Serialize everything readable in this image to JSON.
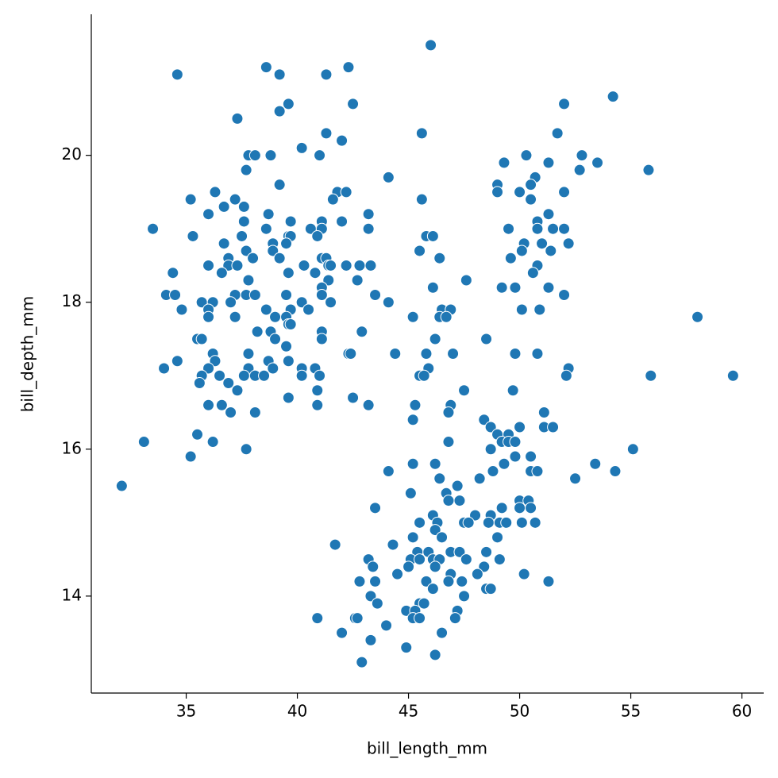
{
  "chart_data": {
    "type": "scatter",
    "x_label": "bill_length_mm",
    "y_label": "bill_depth_mm",
    "color": "#1f77b4",
    "xlim": [
      30.73,
      60.98
    ],
    "ylim": [
      12.68,
      21.92
    ],
    "xticks": [
      35,
      40,
      45,
      50,
      55,
      60
    ],
    "yticks": [
      14,
      16,
      18,
      20
    ],
    "x": [
      46.0,
      34.6,
      38.6,
      39.2,
      41.3,
      42.3,
      39.2,
      39.6,
      42.5,
      54.2,
      52.0,
      37.3,
      41.3,
      42.0,
      45.6,
      51.7,
      40.2,
      37.8,
      38.1,
      38.8,
      41.0,
      50.3,
      52.8,
      49.3,
      51.3,
      53.5,
      37.7,
      52.7,
      55.8,
      44.1,
      50.7,
      39.2,
      49.0,
      50.5,
      36.3,
      41.8,
      42.2,
      49.0,
      50.0,
      52.0,
      35.2,
      37.2,
      41.6,
      45.6,
      50.5,
      36.7,
      37.6,
      36.0,
      38.7,
      43.2,
      51.3,
      37.6,
      39.7,
      41.1,
      42.0,
      50.8,
      33.5,
      38.6,
      40.6,
      41.1,
      43.2,
      49.5,
      50.8,
      51.5,
      52.0,
      35.3,
      37.5,
      39.6,
      39.7,
      40.9,
      45.8,
      46.1,
      36.7,
      38.9,
      39.5,
      50.2,
      51.0,
      52.2,
      38.9,
      37.7,
      45.5,
      51.4,
      50.1,
      36.9,
      38.0,
      39.2,
      41.1,
      41.3,
      46.4,
      49.6,
      36.0,
      36.9,
      37.3,
      40.3,
      41.4,
      41.5,
      42.2,
      42.8,
      43.3,
      50.8,
      34.4,
      36.6,
      39.6,
      40.8,
      50.6,
      41.4,
      37.8,
      42.7,
      47.6,
      41.1,
      46.1,
      49.2,
      49.8,
      51.3,
      34.1,
      34.5,
      37.2,
      37.7,
      38.1,
      39.5,
      41.1,
      43.5,
      52.0,
      35.7,
      36.2,
      37.0,
      40.2,
      41.5,
      44.1,
      34.8,
      36.0,
      38.6,
      39.7,
      40.5,
      46.5,
      46.9,
      50.1,
      50.9,
      36.0,
      37.2,
      39.0,
      39.5,
      45.2,
      46.4,
      46.7,
      58.0,
      39.6,
      39.7,
      38.2,
      38.8,
      41.1,
      42.9,
      35.5,
      35.7,
      39.0,
      41.1,
      46.2,
      48.5,
      39.5,
      36.2,
      37.8,
      42.3,
      42.4,
      44.4,
      45.8,
      47.0,
      49.8,
      50.8,
      36.3,
      34.6,
      38.7,
      39.6,
      36.0,
      34.0,
      37.8,
      38.9,
      40.2,
      40.8,
      45.9,
      52.2,
      35.7,
      36.5,
      37.6,
      38.1,
      38.5,
      40.2,
      41.0,
      45.5,
      45.7,
      52.1,
      55.9,
      59.6,
      35.6,
      36.9,
      37.3,
      40.9,
      47.5,
      49.7,
      39.6,
      42.5,
      36.0,
      36.6,
      40.9,
      43.2,
      45.3,
      46.9,
      37.0,
      38.1,
      46.8,
      51.1,
      45.2,
      48.4,
      48.7,
      50.0,
      51.1,
      51.5,
      35.5,
      49.0,
      49.5,
      33.1,
      36.2,
      46.8,
      49.2,
      49.5,
      49.8,
      37.7,
      48.7,
      55.1,
      35.2,
      49.8,
      50.5,
      49.3,
      45.2,
      46.2,
      53.4,
      32.1,
      44.1,
      48.8,
      50.5,
      50.8,
      54.3,
      46.4,
      48.2,
      52.5,
      47.2,
      45.1,
      46.7,
      46.8,
      47.3,
      50.0,
      50.4,
      43.5,
      49.2,
      50.0,
      50.5,
      46.1,
      48.0,
      48.7,
      45.5,
      46.3,
      47.5,
      47.7,
      48.6,
      49.1,
      49.4,
      50.1,
      50.7,
      46.2,
      49.0,
      45.2,
      46.5,
      41.7,
      44.3,
      46.9,
      45.4,
      45.9,
      47.3,
      48.5,
      43.2,
      45.1,
      45.5,
      46.1,
      46.4,
      47.6,
      49.1,
      43.4,
      45.0,
      46.2,
      48.4,
      50.2,
      44.5,
      46.9,
      48.1,
      42.8,
      43.5,
      45.8,
      46.8,
      47.4,
      51.3,
      46.1,
      48.5,
      48.7,
      43.3,
      47.5,
      43.6,
      45.5,
      45.7,
      47.2,
      44.9,
      45.3,
      40.9,
      42.6,
      42.7,
      45.2,
      45.5,
      47.1,
      44.0,
      42.0,
      46.5,
      43.3,
      44.9,
      46.2,
      42.9
    ],
    "values": [
      21.5,
      21.1,
      21.2,
      21.1,
      21.1,
      21.2,
      20.6,
      20.7,
      20.7,
      20.8,
      20.7,
      20.5,
      20.3,
      20.2,
      20.3,
      20.3,
      20.1,
      20.0,
      20.0,
      20.0,
      20.0,
      20.0,
      20.0,
      19.9,
      19.9,
      19.9,
      19.8,
      19.8,
      19.8,
      19.7,
      19.7,
      19.6,
      19.6,
      19.6,
      19.5,
      19.5,
      19.5,
      19.5,
      19.5,
      19.5,
      19.4,
      19.4,
      19.4,
      19.4,
      19.4,
      19.3,
      19.3,
      19.2,
      19.2,
      19.2,
      19.2,
      19.1,
      19.1,
      19.1,
      19.1,
      19.1,
      19.0,
      19.0,
      19.0,
      19.0,
      19.0,
      19.0,
      19.0,
      19.0,
      19.0,
      18.9,
      18.9,
      18.9,
      18.9,
      18.9,
      18.9,
      18.9,
      18.8,
      18.8,
      18.8,
      18.8,
      18.8,
      18.8,
      18.7,
      18.7,
      18.7,
      18.7,
      18.7,
      18.6,
      18.6,
      18.6,
      18.6,
      18.6,
      18.6,
      18.6,
      18.5,
      18.5,
      18.5,
      18.5,
      18.5,
      18.5,
      18.5,
      18.5,
      18.5,
      18.5,
      18.4,
      18.4,
      18.4,
      18.4,
      18.4,
      18.3,
      18.3,
      18.3,
      18.3,
      18.2,
      18.2,
      18.2,
      18.2,
      18.2,
      18.1,
      18.1,
      18.1,
      18.1,
      18.1,
      18.1,
      18.1,
      18.1,
      18.1,
      18.0,
      18.0,
      18.0,
      18.0,
      18.0,
      18.0,
      17.9,
      17.9,
      17.9,
      17.9,
      17.9,
      17.9,
      17.9,
      17.9,
      17.9,
      17.8,
      17.8,
      17.8,
      17.8,
      17.8,
      17.8,
      17.8,
      17.8,
      17.7,
      17.7,
      17.6,
      17.6,
      17.6,
      17.6,
      17.5,
      17.5,
      17.5,
      17.5,
      17.5,
      17.5,
      17.4,
      17.3,
      17.3,
      17.3,
      17.3,
      17.3,
      17.3,
      17.3,
      17.3,
      17.3,
      17.2,
      17.2,
      17.2,
      17.2,
      17.1,
      17.1,
      17.1,
      17.1,
      17.1,
      17.1,
      17.1,
      17.1,
      17.0,
      17.0,
      17.0,
      17.0,
      17.0,
      17.0,
      17.0,
      17.0,
      17.0,
      17.0,
      17.0,
      17.0,
      16.9,
      16.9,
      16.8,
      16.8,
      16.8,
      16.8,
      16.7,
      16.7,
      16.6,
      16.6,
      16.6,
      16.6,
      16.6,
      16.6,
      16.5,
      16.5,
      16.5,
      16.5,
      16.4,
      16.4,
      16.3,
      16.3,
      16.3,
      16.3,
      16.2,
      16.2,
      16.2,
      16.1,
      16.1,
      16.1,
      16.1,
      16.1,
      16.1,
      16.0,
      16.0,
      16.0,
      15.9,
      15.9,
      15.9,
      15.8,
      15.8,
      15.8,
      15.8,
      15.5,
      15.7,
      15.7,
      15.7,
      15.7,
      15.7,
      15.6,
      15.6,
      15.6,
      15.5,
      15.4,
      15.4,
      15.3,
      15.3,
      15.3,
      15.3,
      15.2,
      15.2,
      15.2,
      15.2,
      15.1,
      15.1,
      15.1,
      15.0,
      15.0,
      15.0,
      15.0,
      15.0,
      15.0,
      15.0,
      15.0,
      15.0,
      14.9,
      14.8,
      14.8,
      14.8,
      14.7,
      14.7,
      14.6,
      14.6,
      14.6,
      14.6,
      14.6,
      14.5,
      14.5,
      14.5,
      14.5,
      14.5,
      14.5,
      14.5,
      14.4,
      14.4,
      14.4,
      14.4,
      14.3,
      14.3,
      14.3,
      14.3,
      14.2,
      14.2,
      14.2,
      14.2,
      14.2,
      14.2,
      14.1,
      14.1,
      14.1,
      14.0,
      14.0,
      13.9,
      13.9,
      13.9,
      13.8,
      13.8,
      13.8,
      13.7,
      13.7,
      13.7,
      13.7,
      13.7,
      13.7,
      13.6,
      13.5,
      13.5,
      13.4,
      13.3,
      13.2,
      13.1
    ]
  }
}
